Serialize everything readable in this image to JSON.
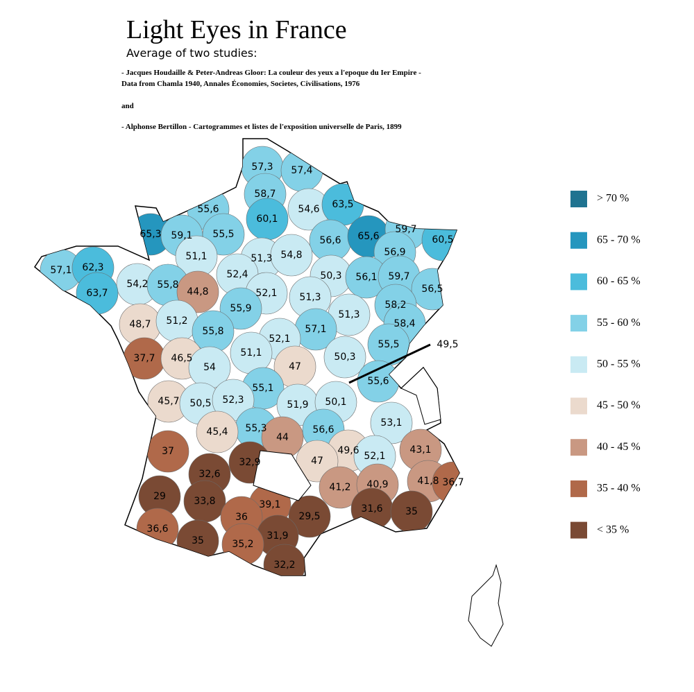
{
  "title": "Light Eyes in France",
  "subtitle": "Average of two studies:",
  "sources": [
    "- Jacques Houdaille & Peter-Andreas Gloor: La couleur des yeux a l'epoque du Ier Empire -",
    "Data from Chamla 1940, Annales Économies, Societes, Civilisations, 1976",
    "and",
    "- Alphonse Bertillon - Cartogrammes et listes de l'exposition universelle de Paris, 1899"
  ],
  "legend": [
    {
      "label": "> 70 %",
      "color": "#1f7390"
    },
    {
      "label": "65 - 70 %",
      "color": "#2596be"
    },
    {
      "label": "60 - 65 %",
      "color": "#4bbcdc"
    },
    {
      "label": "55 - 60 %",
      "color": "#83d1e7"
    },
    {
      "label": "50 - 55 %",
      "color": "#c9eaf3"
    },
    {
      "label": "45 - 50 %",
      "color": "#ebdacd"
    },
    {
      "label": "40 - 45 %",
      "color": "#c99882"
    },
    {
      "label": "35 - 40 %",
      "color": "#b0694a"
    },
    {
      "label": "< 35 %",
      "color": "#7a4a34"
    }
  ],
  "regions": [
    {
      "label": "57,3",
      "color": "#83d1e7"
    },
    {
      "label": "57,4",
      "color": "#83d1e7"
    },
    {
      "label": "58,7",
      "color": "#83d1e7"
    },
    {
      "label": "55,6",
      "color": "#83d1e7"
    },
    {
      "label": "60,1",
      "color": "#4bbcdc"
    },
    {
      "label": "54,6",
      "color": "#c9eaf3"
    },
    {
      "label": "63,5",
      "color": "#4bbcdc"
    },
    {
      "label": "65,3",
      "color": "#2596be"
    },
    {
      "label": "59,1",
      "color": "#83d1e7"
    },
    {
      "label": "55,5",
      "color": "#83d1e7"
    },
    {
      "label": "56,6",
      "color": "#83d1e7"
    },
    {
      "label": "65,6",
      "color": "#2596be"
    },
    {
      "label": "59,7",
      "color": "#83d1e7"
    },
    {
      "label": "60,5",
      "color": "#4bbcdc"
    },
    {
      "label": "56,9",
      "color": "#83d1e7"
    },
    {
      "label": "57,1",
      "color": "#83d1e7"
    },
    {
      "label": "62,3",
      "color": "#4bbcdc"
    },
    {
      "label": "51,1",
      "color": "#c9eaf3"
    },
    {
      "label": "51,3",
      "color": "#c9eaf3"
    },
    {
      "label": "54,8",
      "color": "#c9eaf3"
    },
    {
      "label": "52,4",
      "color": "#c9eaf3"
    },
    {
      "label": "50,3",
      "color": "#c9eaf3"
    },
    {
      "label": "56,1",
      "color": "#83d1e7"
    },
    {
      "label": "59,7",
      "color": "#83d1e7"
    },
    {
      "label": "54,2",
      "color": "#c9eaf3"
    },
    {
      "label": "55,8",
      "color": "#83d1e7"
    },
    {
      "label": "44,8",
      "color": "#c99882"
    },
    {
      "label": "56,5",
      "color": "#83d1e7"
    },
    {
      "label": "63,7",
      "color": "#4bbcdc"
    },
    {
      "label": "52,1",
      "color": "#c9eaf3"
    },
    {
      "label": "51,3",
      "color": "#c9eaf3"
    },
    {
      "label": "55,9",
      "color": "#83d1e7"
    },
    {
      "label": "58,2",
      "color": "#83d1e7"
    },
    {
      "label": "51,3",
      "color": "#c9eaf3"
    },
    {
      "label": "48,7",
      "color": "#ebdacd"
    },
    {
      "label": "51,2",
      "color": "#c9eaf3"
    },
    {
      "label": "57,1",
      "color": "#83d1e7"
    },
    {
      "label": "58,4",
      "color": "#83d1e7"
    },
    {
      "label": "55,8",
      "color": "#83d1e7"
    },
    {
      "label": "52,1",
      "color": "#c9eaf3"
    },
    {
      "label": "55,5",
      "color": "#83d1e7"
    },
    {
      "label": "37,7",
      "color": "#b0694a"
    },
    {
      "label": "46,5",
      "color": "#ebdacd"
    },
    {
      "label": "51,1",
      "color": "#c9eaf3"
    },
    {
      "label": "50,3",
      "color": "#c9eaf3"
    },
    {
      "label": "54",
      "color": "#c9eaf3"
    },
    {
      "label": "47",
      "color": "#ebdacd"
    },
    {
      "label": "55,6",
      "color": "#83d1e7"
    },
    {
      "label": "55,1",
      "color": "#83d1e7"
    },
    {
      "label": "45,7",
      "color": "#ebdacd"
    },
    {
      "label": "50,5",
      "color": "#c9eaf3"
    },
    {
      "label": "52,3",
      "color": "#c9eaf3"
    },
    {
      "label": "51,9",
      "color": "#c9eaf3"
    },
    {
      "label": "50,1",
      "color": "#c9eaf3"
    },
    {
      "label": "53,1",
      "color": "#c9eaf3"
    },
    {
      "label": "55,3",
      "color": "#83d1e7"
    },
    {
      "label": "45,4",
      "color": "#ebdacd"
    },
    {
      "label": "44",
      "color": "#c99882"
    },
    {
      "label": "56,6",
      "color": "#83d1e7"
    },
    {
      "label": "37",
      "color": "#b0694a"
    },
    {
      "label": "43,1",
      "color": "#c99882"
    },
    {
      "label": "49,6",
      "color": "#ebdacd"
    },
    {
      "label": "52,1",
      "color": "#c9eaf3"
    },
    {
      "label": "47",
      "color": "#ebdacd"
    },
    {
      "label": "32,9",
      "color": "#7a4a34"
    },
    {
      "label": "32,6",
      "color": "#7a4a34"
    },
    {
      "label": "41,8",
      "color": "#c99882"
    },
    {
      "label": "36,7",
      "color": "#b0694a"
    },
    {
      "label": "41,2",
      "color": "#c99882"
    },
    {
      "label": "40,9",
      "color": "#c99882"
    },
    {
      "label": "29",
      "color": "#7a4a34"
    },
    {
      "label": "33,8",
      "color": "#7a4a34"
    },
    {
      "label": "39,1",
      "color": "#b0694a"
    },
    {
      "label": "29,5",
      "color": "#7a4a34"
    },
    {
      "label": "31,6",
      "color": "#7a4a34"
    },
    {
      "label": "35",
      "color": "#7a4a34"
    },
    {
      "label": "36",
      "color": "#b0694a"
    },
    {
      "label": "36,6",
      "color": "#b0694a"
    },
    {
      "label": "35",
      "color": "#7a4a34"
    },
    {
      "label": "31,9",
      "color": "#7a4a34"
    },
    {
      "label": "35,2",
      "color": "#b0694a"
    },
    {
      "label": "32,2",
      "color": "#7a4a34"
    }
  ],
  "callout": {
    "label": "49,5"
  }
}
